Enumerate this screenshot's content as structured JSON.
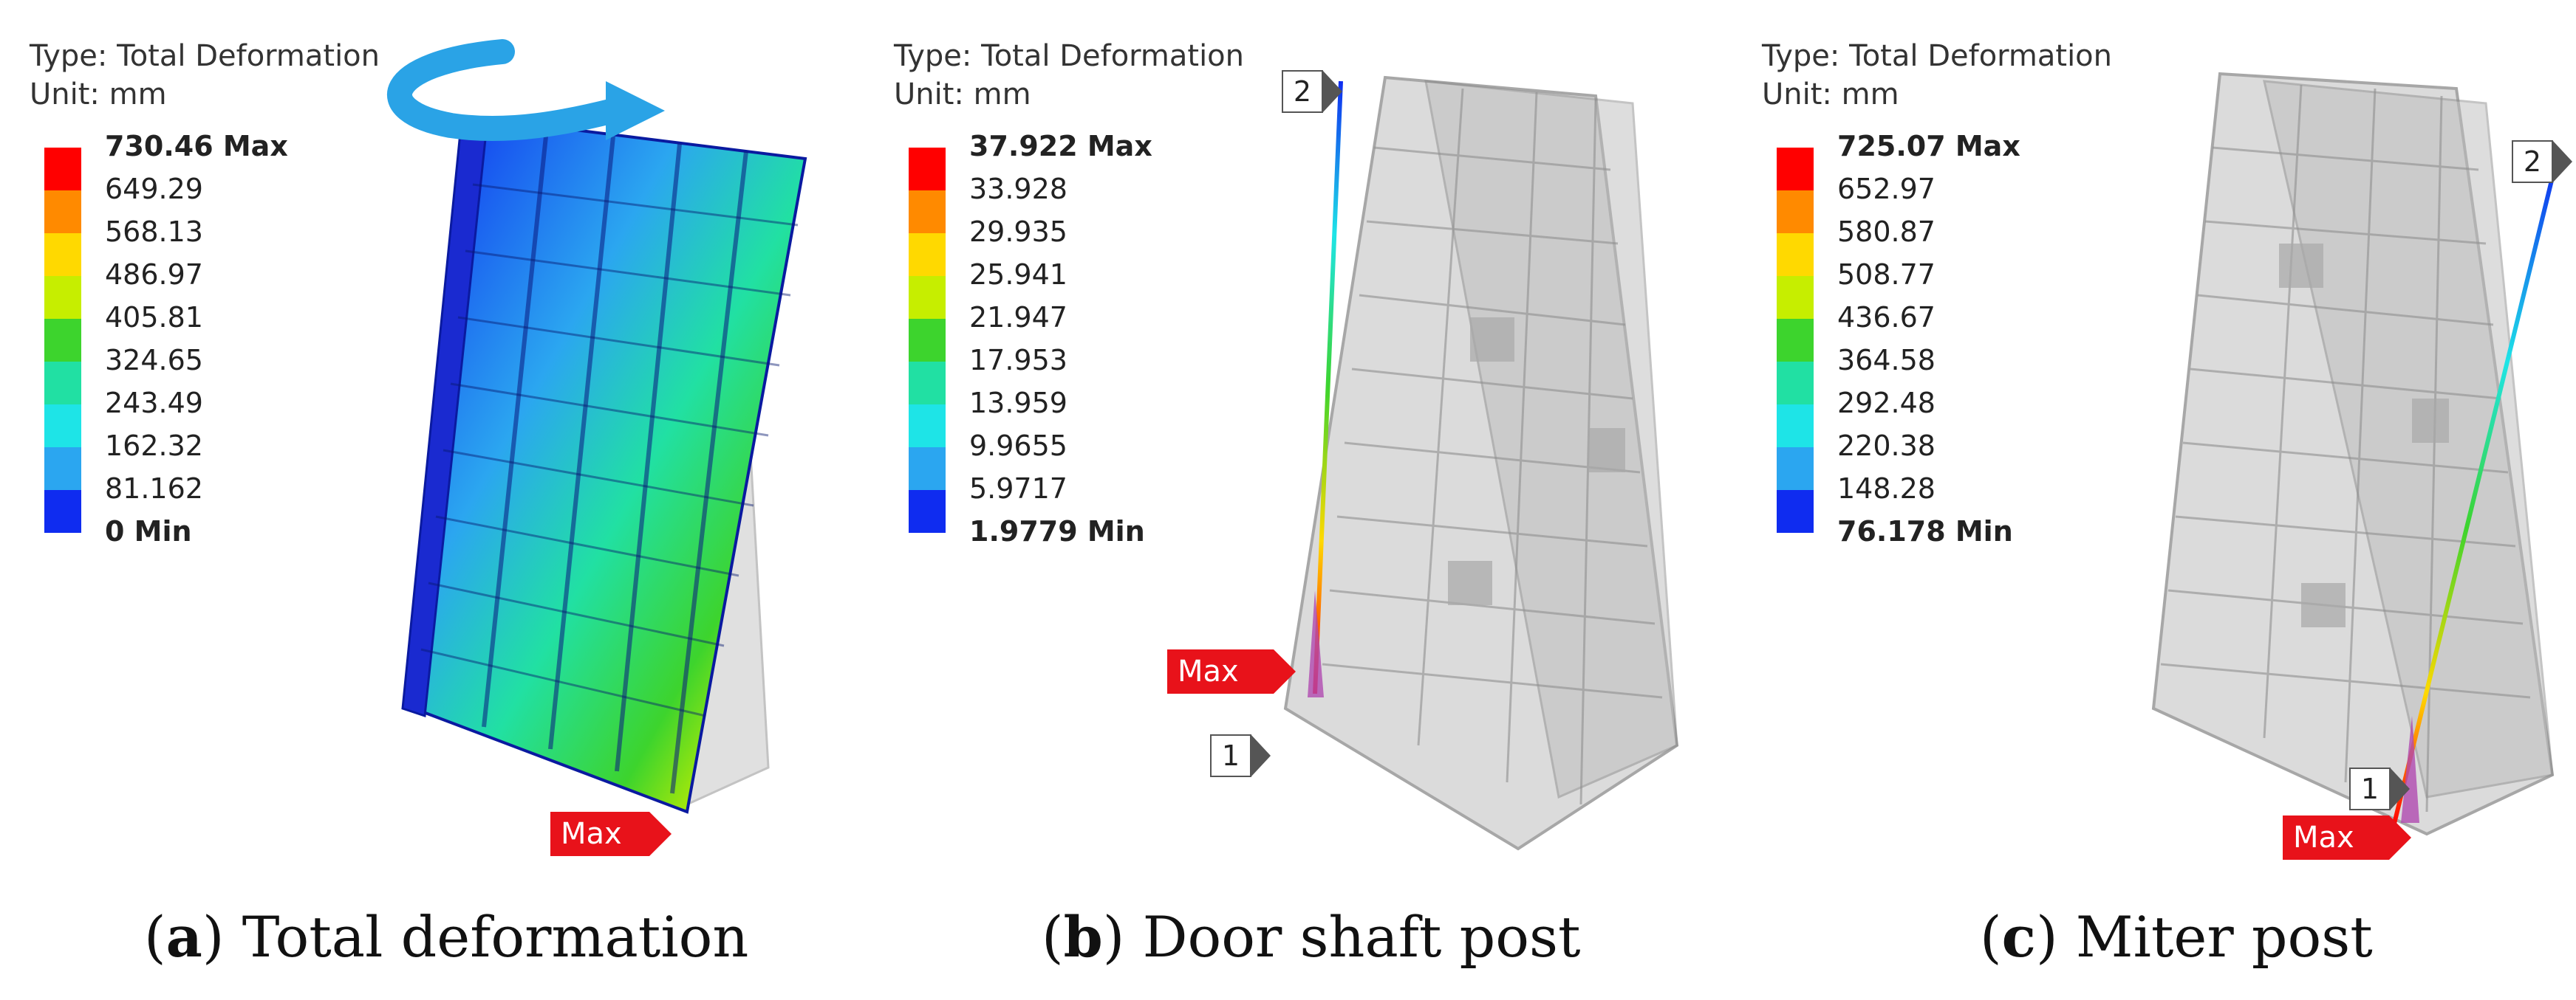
{
  "scale_colors": [
    "#ff0000",
    "#ff8a00",
    "#ffd900",
    "#c6ee00",
    "#3dd42d",
    "#21e0a3",
    "#1ee4e7",
    "#2ba6f0",
    "#0f2cf0"
  ],
  "panels": [
    {
      "legend": {
        "type_label": "Type: Total Deformation",
        "unit_label": "Unit: mm",
        "max_label": "730.46 Max",
        "ticks": [
          "649.29",
          "568.13",
          "486.97",
          "405.81",
          "324.65",
          "243.49",
          "162.32",
          "81.162"
        ],
        "min_label": "0 Min"
      },
      "max_flag": "Max",
      "caption": {
        "letter": "a",
        "text": ") Total deformation"
      }
    },
    {
      "legend": {
        "type_label": "Type: Total Deformation",
        "unit_label": "Unit: mm",
        "max_label": "37.922 Max",
        "ticks": [
          "33.928",
          "29.935",
          "25.941",
          "21.947",
          "17.953",
          "13.959",
          "9.9655",
          "5.9717"
        ],
        "min_label": "1.9779 Min"
      },
      "max_flag": "Max",
      "probe_1": "1",
      "probe_2": "2",
      "caption": {
        "letter": "b",
        "text": ") Door shaft post"
      }
    },
    {
      "legend": {
        "type_label": "Type: Total Deformation",
        "unit_label": "Unit: mm",
        "max_label": "725.07 Max",
        "ticks": [
          "652.97",
          "580.87",
          "508.77",
          "436.67",
          "364.58",
          "292.48",
          "220.38",
          "148.28"
        ],
        "min_label": "76.178 Min"
      },
      "max_flag": "Max",
      "probe_1": "1",
      "probe_2": "2",
      "caption": {
        "letter": "c",
        "text": ") Miter post"
      }
    }
  ]
}
